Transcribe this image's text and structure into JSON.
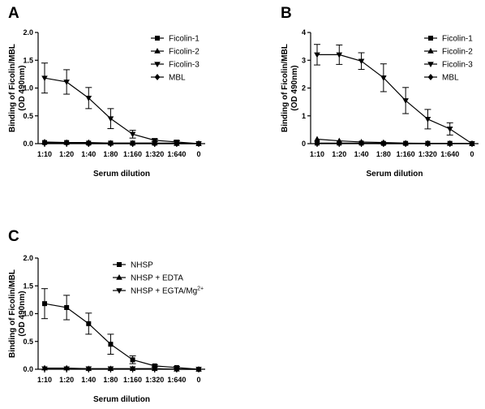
{
  "chart_data": [
    {
      "type": "line",
      "panel": "A",
      "xlabel": "Serum dilution",
      "ylabel": [
        "Binding of Ficolin/MBL",
        "(OD 490nm)"
      ],
      "categories": [
        "1:10",
        "1:20",
        "1:40",
        "1:80",
        "1:160",
        "1:320",
        "1:640",
        "0"
      ],
      "ylim": [
        0,
        2.0
      ],
      "yticks": [
        "0.0",
        "0.5",
        "1.0",
        "1.5",
        "2.0"
      ],
      "yticks_values": [
        0,
        0.5,
        1.0,
        1.5,
        2.0
      ],
      "grid": false,
      "legend_position": "top-right",
      "series": [
        {
          "name": "Ficolin-1",
          "marker": "square",
          "values": [
            0.02,
            0.02,
            0.01,
            0.01,
            0.01,
            0.01,
            0.01,
            0.0
          ]
        },
        {
          "name": "Ficolin-2",
          "marker": "triangle-up",
          "values": [
            0.03,
            0.02,
            0.02,
            0.01,
            0.01,
            0.01,
            0.0,
            0.0
          ]
        },
        {
          "name": "Ficolin-3",
          "marker": "triangle-down",
          "values": [
            1.18,
            1.11,
            0.82,
            0.45,
            0.17,
            0.06,
            0.03,
            0.0
          ],
          "errors": [
            0.27,
            0.22,
            0.19,
            0.18,
            0.07,
            0.02,
            0.02,
            0.0
          ]
        },
        {
          "name": "MBL",
          "marker": "diamond",
          "values": [
            0.01,
            0.01,
            0.0,
            0.0,
            0.0,
            0.0,
            0.0,
            0.0
          ]
        }
      ]
    },
    {
      "type": "line",
      "panel": "B",
      "xlabel": "Serum dilution",
      "ylabel": [
        "Binding of Ficolin/MBL",
        "(OD 490nm)"
      ],
      "categories": [
        "1:10",
        "1:20",
        "1:40",
        "1:80",
        "1:160",
        "1:320",
        "1:640",
        "0"
      ],
      "ylim": [
        0,
        4
      ],
      "yticks": [
        "0",
        "1",
        "2",
        "3",
        "4"
      ],
      "yticks_values": [
        0,
        1,
        2,
        3,
        4
      ],
      "grid": false,
      "legend_position": "top-right",
      "series": [
        {
          "name": "Ficolin-1",
          "marker": "square",
          "values": [
            0.02,
            0.02,
            0.02,
            0.01,
            0.01,
            0.01,
            0.01,
            0.0
          ]
        },
        {
          "name": "Ficolin-2",
          "marker": "triangle-up",
          "values": [
            0.16,
            0.1,
            0.06,
            0.04,
            0.02,
            0.01,
            0.01,
            0.0
          ]
        },
        {
          "name": "Ficolin-3",
          "marker": "triangle-down",
          "values": [
            3.2,
            3.2,
            2.97,
            2.37,
            1.55,
            0.88,
            0.53,
            0.0
          ],
          "errors": [
            0.37,
            0.35,
            0.3,
            0.5,
            0.47,
            0.35,
            0.22,
            0.0
          ]
        },
        {
          "name": "MBL",
          "marker": "diamond",
          "values": [
            0.01,
            0.01,
            0.01,
            0.0,
            0.0,
            0.0,
            0.0,
            0.0
          ]
        }
      ]
    },
    {
      "type": "line",
      "panel": "C",
      "xlabel": "Serum dilution",
      "ylabel": [
        "Binding of Ficolin/MBL",
        "(OD 490nm)"
      ],
      "categories": [
        "1:10",
        "1:20",
        "1:40",
        "1:80",
        "1:160",
        "1:320",
        "1:640",
        "0"
      ],
      "ylim": [
        0,
        2.0
      ],
      "yticks": [
        "0.0",
        "0.5",
        "1.0",
        "1.5",
        "2.0"
      ],
      "yticks_values": [
        0,
        0.5,
        1.0,
        1.5,
        2.0
      ],
      "grid": false,
      "legend_position": "top-right",
      "series": [
        {
          "name": "NHSP",
          "marker": "square",
          "values": [
            1.18,
            1.11,
            0.82,
            0.45,
            0.17,
            0.06,
            0.03,
            0.0
          ],
          "errors": [
            0.27,
            0.22,
            0.19,
            0.18,
            0.07,
            0.02,
            0.02,
            0.0
          ]
        },
        {
          "name": "NHSP + EDTA",
          "marker": "triangle-up",
          "values": [
            0.02,
            0.02,
            0.01,
            0.01,
            0.01,
            0.01,
            0.0,
            0.0
          ]
        },
        {
          "name": "NHSP + EGTA/Mg",
          "name_superscript": "2+",
          "marker": "triangle-down",
          "values": [
            0.01,
            0.01,
            0.01,
            0.01,
            0.01,
            0.01,
            0.0,
            0.0
          ]
        }
      ]
    }
  ]
}
